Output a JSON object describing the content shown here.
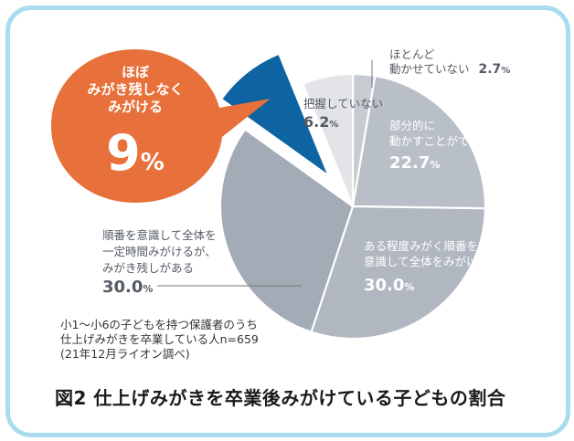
{
  "chart_data": {
    "type": "pie",
    "unit": "%",
    "slices": [
      {
        "label": "ほとんど動かせていない",
        "value": 2.7,
        "color": "#c7ccd3"
      },
      {
        "label": "部分的に動かすことができる",
        "value": 22.7,
        "color": "#b9bfc7"
      },
      {
        "label": "ある程度みがく順番を意識して全体をみがける",
        "value": 30.0,
        "color": "#b0b7c0"
      },
      {
        "label": "順番を意識して全体を一定時間みがけるが、みがき残しがある",
        "value": 30.0,
        "color": "#a3acb6"
      },
      {
        "label": "ほぼみがき残しなくみがける",
        "value": 9.0,
        "color": "#0e64a3"
      },
      {
        "label": "把握していない",
        "value": 6.2,
        "color": "#e2e4e7"
      }
    ]
  },
  "labels": {
    "hotondo_1": "ほとんど",
    "hotondo_2": "動かせていない",
    "hotondo_val": "2.7",
    "haaku": "把握していない",
    "haaku_val": "6.2",
    "bubun_1": "部分的に",
    "bubun_2": "動かすことができる",
    "bubun_val": "22.7",
    "aru_1": "ある程度みがく順番を",
    "aru_2": "意識して全体をみがける",
    "aru_val": "30.0",
    "jun_1": "順番を意識して全体を",
    "jun_2": "一定時間みがけるが、",
    "jun_3": "みがき残しがある",
    "jun_val": "30.0",
    "hobo_1": "ほぼ",
    "hobo_2": "みがき残しなく",
    "hobo_3": "みがける",
    "hobo_val": "9",
    "pct": "%"
  },
  "note": {
    "line1": "小1〜小6の子どもを持つ保護者のうち",
    "line2": "仕上げみがきを卒業している人n=659",
    "line3": "(21年12月ライオン調べ)"
  },
  "caption": "図2 仕上げみがきを卒業後みがけている子どもの割合",
  "colors": {
    "frame": "#a9dcef",
    "bubble": "#e8703a",
    "highlight": "#0e64a3",
    "label_dark": "#555b63",
    "label_light": "#ffffff"
  }
}
